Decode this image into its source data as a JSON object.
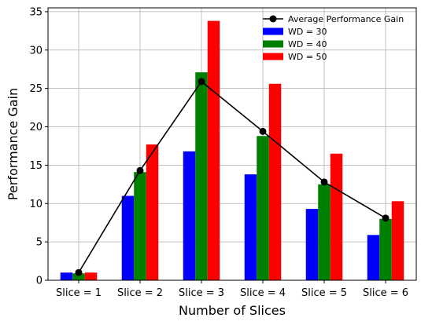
{
  "chart_data": {
    "type": "bar",
    "title": "",
    "xlabel": "Number of Slices",
    "ylabel": "Performance Gain",
    "categories": [
      "Slice = 1",
      "Slice = 2",
      "Slice = 3",
      "Slice = 4",
      "Slice = 5",
      "Slice = 6"
    ],
    "ylim": [
      0,
      35.5
    ],
    "yticks": [
      0,
      5,
      10,
      15,
      20,
      25,
      30,
      35
    ],
    "grid": true,
    "legend_position": "top-right",
    "series": [
      {
        "name": "WD = 30",
        "type": "bar",
        "color": "#0000ff",
        "values": [
          1.0,
          11.0,
          16.8,
          13.8,
          9.3,
          5.9
        ]
      },
      {
        "name": "WD = 40",
        "type": "bar",
        "color": "#008000",
        "values": [
          0.9,
          14.1,
          27.1,
          18.8,
          12.5,
          8.0
        ]
      },
      {
        "name": "WD = 50",
        "type": "bar",
        "color": "#ff0000",
        "values": [
          1.0,
          17.7,
          33.8,
          25.6,
          16.5,
          10.3
        ]
      },
      {
        "name": "Average Performance Gain",
        "type": "line",
        "color": "#000000",
        "marker": "circle",
        "values": [
          1.0,
          14.3,
          25.9,
          19.4,
          12.8,
          8.1
        ]
      }
    ],
    "legend_order": [
      "Average Performance Gain",
      "WD = 30",
      "WD = 40",
      "WD = 50"
    ]
  }
}
